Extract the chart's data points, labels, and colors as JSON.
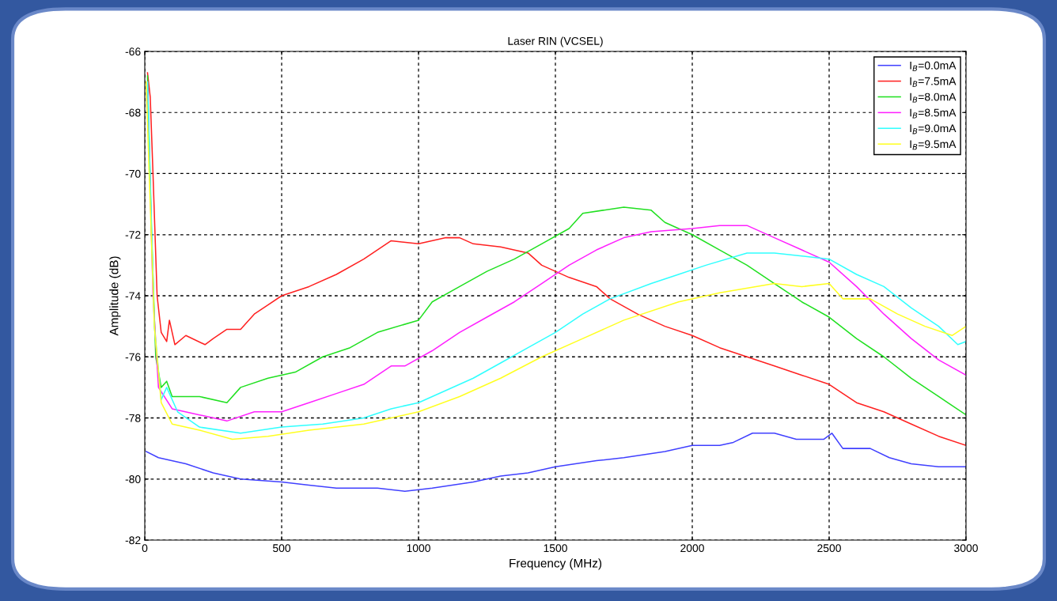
{
  "chart_data": {
    "type": "line",
    "title": "Laser RIN (VCSEL)",
    "xlabel": "Frequency (MHz)",
    "ylabel": "Amplitude (dB)",
    "xlim": [
      0,
      3000
    ],
    "xticks": [
      0,
      500,
      1000,
      1500,
      2000,
      2500,
      3000
    ],
    "ylim": [
      -82,
      -66
    ],
    "yticks": [
      -82,
      -80,
      -78,
      -76,
      -74,
      -72,
      -70,
      -68,
      -66
    ],
    "grid": true,
    "legend": "top right",
    "series": [
      {
        "name": "I$_{B}$=0.0mA",
        "color": "#4040ff",
        "x": [
          5,
          50,
          150,
          250,
          350,
          500,
          600,
          700,
          850,
          950,
          1050,
          1200,
          1300,
          1400,
          1500,
          1650,
          1750,
          1900,
          2000,
          2100,
          2150,
          2220,
          2300,
          2380,
          2480,
          2510,
          2550,
          2650,
          2720,
          2800,
          2900,
          3000
        ],
        "values": [
          -79.1,
          -79.3,
          -79.5,
          -79.8,
          -80.0,
          -80.1,
          -80.2,
          -80.3,
          -80.3,
          -80.4,
          -80.3,
          -80.1,
          -79.9,
          -79.8,
          -79.6,
          -79.4,
          -79.3,
          -79.1,
          -78.9,
          -78.9,
          -78.8,
          -78.5,
          -78.5,
          -78.7,
          -78.7,
          -78.5,
          -79.0,
          -79.0,
          -79.3,
          -79.5,
          -79.6,
          -79.6
        ]
      },
      {
        "name": "I$_{B}$=7.5mA",
        "color": "#ff2020",
        "x": [
          10,
          20,
          30,
          45,
          60,
          80,
          90,
          110,
          150,
          220,
          250,
          300,
          350,
          400,
          450,
          500,
          600,
          700,
          800,
          900,
          1000,
          1100,
          1150,
          1200,
          1300,
          1400,
          1450,
          1550,
          1650,
          1700,
          1800,
          1900,
          2000,
          2100,
          2200,
          2300,
          2400,
          2500,
          2600,
          2700,
          2800,
          2900,
          3000
        ],
        "values": [
          -66.7,
          -67.5,
          -70.0,
          -74.0,
          -75.2,
          -75.5,
          -74.8,
          -75.6,
          -75.3,
          -75.6,
          -75.4,
          -75.1,
          -75.1,
          -74.6,
          -74.3,
          -74.0,
          -73.7,
          -73.3,
          -72.8,
          -72.2,
          -72.3,
          -72.1,
          -72.1,
          -72.3,
          -72.4,
          -72.6,
          -73.0,
          -73.4,
          -73.7,
          -74.1,
          -74.6,
          -75.0,
          -75.3,
          -75.7,
          -76.0,
          -76.3,
          -76.6,
          -76.9,
          -77.5,
          -77.8,
          -78.2,
          -78.6,
          -78.9
        ]
      },
      {
        "name": "I$_{B}$=8.0mA",
        "color": "#20e020",
        "x": [
          10,
          25,
          40,
          60,
          80,
          100,
          200,
          300,
          350,
          450,
          550,
          650,
          750,
          850,
          1000,
          1050,
          1150,
          1250,
          1350,
          1450,
          1550,
          1600,
          1750,
          1850,
          1900,
          2000,
          2100,
          2200,
          2300,
          2400,
          2500,
          2600,
          2700,
          2800,
          2900,
          3000
        ],
        "values": [
          -66.8,
          -72.0,
          -76.0,
          -77.0,
          -76.8,
          -77.3,
          -77.3,
          -77.5,
          -77.0,
          -76.7,
          -76.5,
          -76.0,
          -75.7,
          -75.2,
          -74.8,
          -74.2,
          -73.7,
          -73.2,
          -72.8,
          -72.3,
          -71.8,
          -71.3,
          -71.1,
          -71.2,
          -71.6,
          -72.0,
          -72.5,
          -73.0,
          -73.6,
          -74.2,
          -74.7,
          -75.4,
          -76.0,
          -76.7,
          -77.3,
          -77.9
        ]
      },
      {
        "name": "I$_{B}$=8.5mA",
        "color": "#ff20ff",
        "x": [
          10,
          30,
          50,
          100,
          200,
          300,
          400,
          500,
          600,
          700,
          800,
          900,
          950,
          1050,
          1150,
          1250,
          1350,
          1450,
          1550,
          1650,
          1750,
          1850,
          2000,
          2100,
          2200,
          2300,
          2400,
          2500,
          2600,
          2700,
          2800,
          2900,
          3000
        ],
        "values": [
          -67.0,
          -74.0,
          -77.0,
          -77.7,
          -77.9,
          -78.1,
          -77.8,
          -77.8,
          -77.5,
          -77.2,
          -76.9,
          -76.3,
          -76.3,
          -75.8,
          -75.2,
          -74.7,
          -74.2,
          -73.6,
          -73.0,
          -72.5,
          -72.1,
          -71.9,
          -71.8,
          -71.7,
          -71.7,
          -72.1,
          -72.5,
          -72.9,
          -73.7,
          -74.6,
          -75.4,
          -76.1,
          -76.6
        ]
      },
      {
        "name": "I$_{B}$=9.0mA",
        "color": "#30ffff",
        "x": [
          10,
          35,
          60,
          80,
          120,
          200,
          350,
          500,
          650,
          800,
          900,
          1000,
          1100,
          1200,
          1300,
          1400,
          1500,
          1600,
          1700,
          1850,
          1950,
          2050,
          2200,
          2300,
          2500,
          2600,
          2700,
          2800,
          2900,
          2970,
          3000
        ],
        "values": [
          -67.0,
          -75.0,
          -77.4,
          -77.0,
          -77.8,
          -78.3,
          -78.5,
          -78.3,
          -78.2,
          -78.0,
          -77.7,
          -77.5,
          -77.1,
          -76.7,
          -76.2,
          -75.7,
          -75.2,
          -74.6,
          -74.1,
          -73.6,
          -73.3,
          -73.0,
          -72.6,
          -72.6,
          -72.8,
          -73.3,
          -73.7,
          -74.4,
          -75.0,
          -75.6,
          -75.5
        ]
      },
      {
        "name": "I$_{B}$=9.5mA",
        "color": "#ffff20",
        "x": [
          5,
          35,
          60,
          100,
          200,
          320,
          450,
          600,
          800,
          1000,
          1150,
          1300,
          1450,
          1600,
          1750,
          1950,
          2100,
          2300,
          2400,
          2500,
          2550,
          2650,
          2750,
          2850,
          2950,
          3000
        ],
        "values": [
          -67.0,
          -75.0,
          -77.5,
          -78.2,
          -78.4,
          -78.7,
          -78.6,
          -78.4,
          -78.2,
          -77.8,
          -77.3,
          -76.7,
          -76.0,
          -75.4,
          -74.8,
          -74.2,
          -73.9,
          -73.6,
          -73.7,
          -73.6,
          -74.1,
          -74.1,
          -74.6,
          -75.0,
          -75.3,
          -75.0
        ]
      }
    ]
  }
}
